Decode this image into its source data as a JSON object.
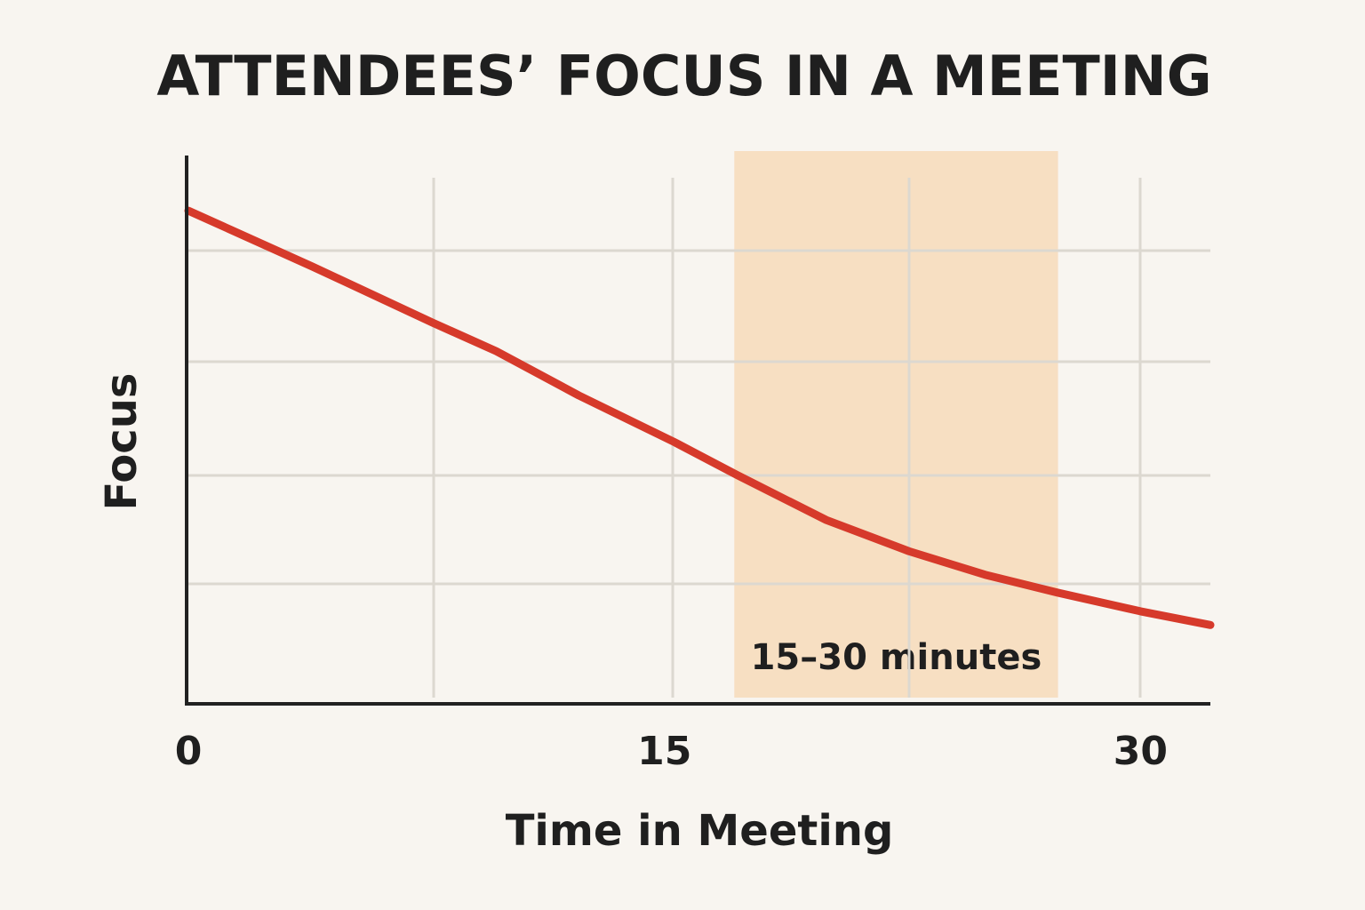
{
  "chart_data": {
    "type": "line",
    "title": "ATTENDEES’ FOCUS IN A MEETING",
    "x_label": "Time in Meeting",
    "y_label": "Focus",
    "xlim": [
      0,
      32.2
    ],
    "xticks": [
      0,
      15,
      30
    ],
    "ylim": [
      0,
      100
    ],
    "series": [
      {
        "color": "#d63a2b",
        "x": [
          0,
          3.9,
          7.7,
          9.7,
          12.3,
          15.3,
          17.3,
          20.1,
          22.7,
          25.1,
          27.4,
          30,
          32.2
        ],
        "values": [
          89.9,
          79.7,
          69.4,
          64.2,
          56.1,
          47.6,
          41.5,
          33.3,
          27.6,
          23.3,
          20.0,
          16.6,
          14.1
        ]
      }
    ],
    "highlight": {
      "x": [
        17.2,
        27.4
      ],
      "label": "15–30 minutes",
      "color": "#f7dfc2"
    }
  }
}
